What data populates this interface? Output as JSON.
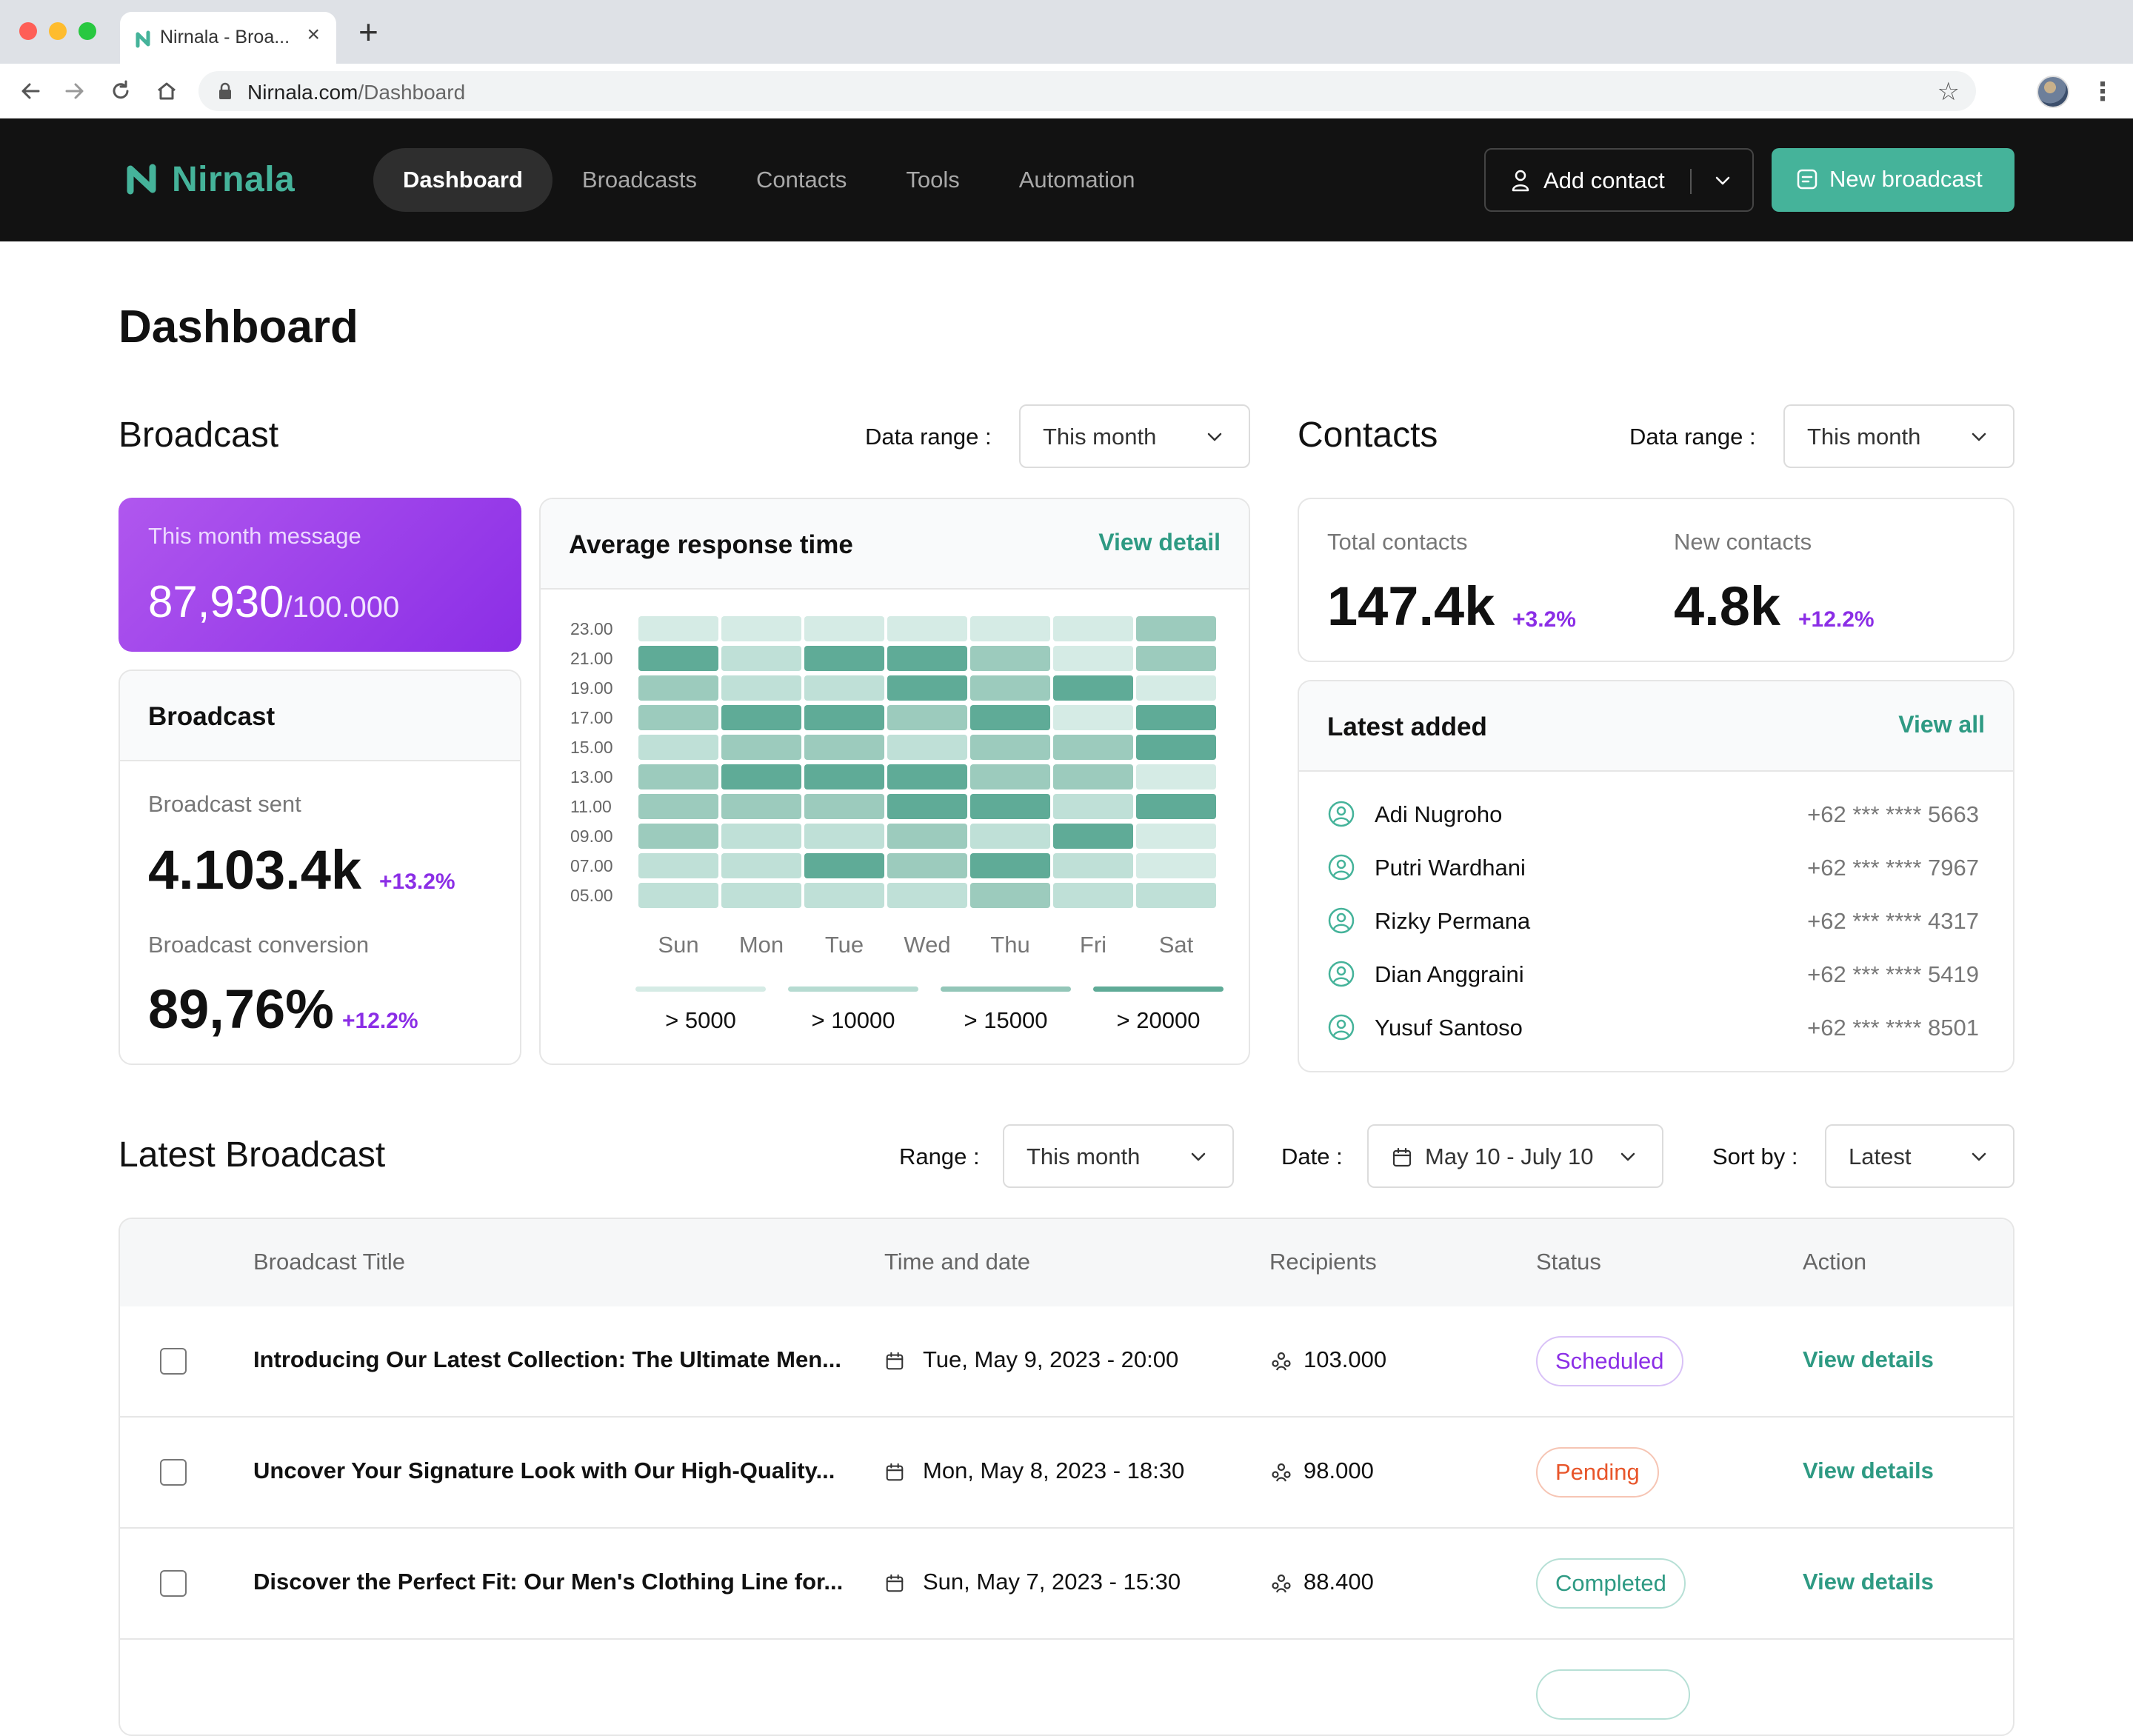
{
  "browser": {
    "tab_title": "Nirnala - Broa...",
    "url_domain": "Nirnala.com",
    "url_path": "/Dashboard"
  },
  "app": {
    "brand": "Nirnala",
    "brand_color": "#45b39a",
    "nav": [
      "Dashboard",
      "Broadcasts",
      "Contacts",
      "Tools",
      "Automation"
    ],
    "active_nav": "Dashboard",
    "add_contact_label": "Add contact",
    "new_broadcast_label": "New broadcast"
  },
  "page_title": "Dashboard",
  "broadcast_section": {
    "title": "Broadcast",
    "range_label": "Data range :",
    "range_value": "This month",
    "month_card": {
      "label": "This month message",
      "value": "87,930",
      "limit": "/100.000"
    },
    "stats_card": {
      "title": "Broadcast",
      "sent_label": "Broadcast sent",
      "sent_value": "4.103.4k",
      "sent_delta": "+13.2%",
      "conversion_label": "Broadcast conversion",
      "conversion_value": "89,76%",
      "conversion_delta": "+12.2%"
    }
  },
  "response_card": {
    "title": "Average response time",
    "link": "View detail"
  },
  "chart_data": {
    "type": "heatmap",
    "title": "Average response time",
    "x": [
      "Sun",
      "Mon",
      "Tue",
      "Wed",
      "Thu",
      "Fri",
      "Sat"
    ],
    "y": [
      "23.00",
      "21.00",
      "19.00",
      "17.00",
      "15.00",
      "13.00",
      "11.00",
      "09.00",
      "07.00",
      "05.00"
    ],
    "values": [
      [
        1,
        1,
        1,
        1,
        1,
        1,
        3
      ],
      [
        4,
        2,
        4,
        4,
        3,
        1,
        3
      ],
      [
        3,
        2,
        2,
        4,
        3,
        4,
        1
      ],
      [
        3,
        4,
        4,
        3,
        4,
        1,
        4
      ],
      [
        2,
        3,
        3,
        2,
        3,
        3,
        4
      ],
      [
        3,
        4,
        4,
        4,
        3,
        3,
        1
      ],
      [
        3,
        3,
        3,
        4,
        4,
        2,
        4
      ],
      [
        3,
        2,
        2,
        3,
        2,
        4,
        1
      ],
      [
        2,
        2,
        4,
        3,
        4,
        2,
        1
      ],
      [
        2,
        2,
        2,
        2,
        3,
        2,
        2
      ]
    ],
    "legend": [
      "> 5000",
      "> 10000",
      "> 15000",
      "> 20000"
    ],
    "legend_colors": [
      "#d5ebe5",
      "#b6dbd1",
      "#93c6b8",
      "#5fab97"
    ]
  },
  "contacts_section": {
    "title": "Contacts",
    "range_label": "Data range :",
    "range_value": "This month",
    "total_label": "Total contacts",
    "total_value": "147.4k",
    "total_delta": "+3.2%",
    "new_label": "New contacts",
    "new_value": "4.8k",
    "new_delta": "+12.2%",
    "latest_title": "Latest added",
    "latest_link": "View all",
    "latest": [
      {
        "name": "Adi Nugroho",
        "phone": "+62 *** **** 5663"
      },
      {
        "name": "Putri Wardhani",
        "phone": "+62 *** **** 7967"
      },
      {
        "name": "Rizky Permana",
        "phone": "+62 *** **** 4317"
      },
      {
        "name": "Dian Anggraini",
        "phone": "+62 *** **** 5419"
      },
      {
        "name": "Yusuf Santoso",
        "phone": "+62 *** **** 8501"
      }
    ]
  },
  "latest_broadcast": {
    "title": "Latest Broadcast",
    "range_label": "Range :",
    "range_value": "This month",
    "date_label": "Date :",
    "date_value": "May 10 - July 10",
    "sort_label": "Sort by :",
    "sort_value": "Latest",
    "columns": [
      "Broadcast Title",
      "Time and date",
      "Recipients",
      "Status",
      "Action"
    ],
    "rows": [
      {
        "title": "Introducing Our Latest Collection: The Ultimate Men...",
        "date": "Tue, May 9, 2023 - 20:00",
        "recipients": "103.000",
        "status": "Scheduled",
        "action": "View details"
      },
      {
        "title": "Uncover Your Signature Look with Our High-Quality...",
        "date": "Mon, May 8, 2023 - 18:30",
        "recipients": "98.000",
        "status": "Pending",
        "action": "View details"
      },
      {
        "title": "Discover the Perfect Fit: Our Men's Clothing Line for...",
        "date": "Sun, May 7, 2023 - 15:30",
        "recipients": "88.400",
        "status": "Completed",
        "action": "View details"
      }
    ]
  }
}
